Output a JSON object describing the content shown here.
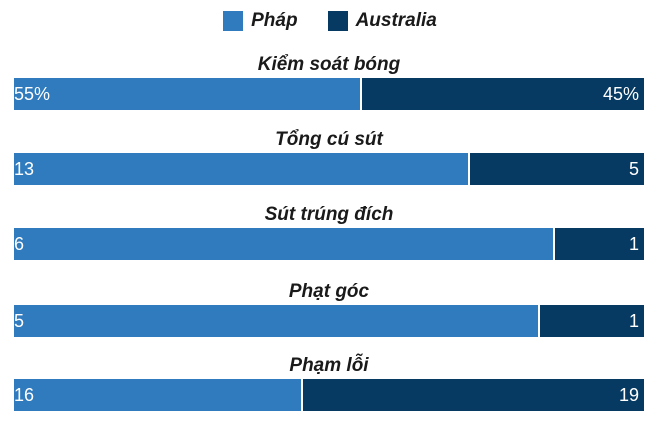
{
  "colors": {
    "team_a": "#2f7bbd",
    "team_b": "#063a63"
  },
  "legend": {
    "team_a": "Pháp",
    "team_b": "Australia"
  },
  "chart_data": {
    "type": "bar",
    "orientation": "horizontal-stacked-share",
    "series": [
      {
        "name": "Pháp",
        "values": [
          55,
          13,
          6,
          5,
          16
        ]
      },
      {
        "name": "Australia",
        "values": [
          45,
          5,
          1,
          1,
          19
        ]
      }
    ],
    "categories": [
      "Kiểm soát bóng",
      "Tổng cú sút",
      "Sút trúng đích",
      "Phạt góc",
      "Phạm lỗi"
    ],
    "stats": [
      {
        "title": "Kiểm soát bóng",
        "a": 55,
        "b": 45,
        "a_label": "55%",
        "b_label": "45%"
      },
      {
        "title": "Tổng cú sút",
        "a": 13,
        "b": 5,
        "a_label": "13",
        "b_label": "5"
      },
      {
        "title": "Sút trúng đích",
        "a": 6,
        "b": 1,
        "a_label": "6",
        "b_label": "1"
      },
      {
        "title": "Phạt góc",
        "a": 5,
        "b": 1,
        "a_label": "5",
        "b_label": "1"
      },
      {
        "title": "Phạm lỗi",
        "a": 16,
        "b": 19,
        "a_label": "16",
        "b_label": "19"
      }
    ],
    "legend_position": "top-center"
  }
}
